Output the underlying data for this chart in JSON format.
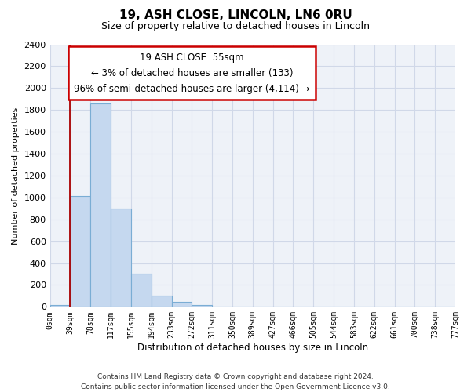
{
  "title": "19, ASH CLOSE, LINCOLN, LN6 0RU",
  "subtitle": "Size of property relative to detached houses in Lincoln",
  "xlabel": "Distribution of detached houses by size in Lincoln",
  "ylabel": "Number of detached properties",
  "bin_labels": [
    "0sqm",
    "39sqm",
    "78sqm",
    "117sqm",
    "155sqm",
    "194sqm",
    "233sqm",
    "272sqm",
    "311sqm",
    "350sqm",
    "389sqm",
    "427sqm",
    "466sqm",
    "505sqm",
    "544sqm",
    "583sqm",
    "622sqm",
    "661sqm",
    "700sqm",
    "738sqm",
    "777sqm"
  ],
  "bar_values": [
    20,
    1010,
    1860,
    900,
    300,
    100,
    45,
    20,
    0,
    0,
    0,
    0,
    0,
    0,
    0,
    0,
    0,
    0,
    0,
    0
  ],
  "bar_color": "#c5d8ef",
  "bar_edge_color": "#7aadd4",
  "property_line_x": 1,
  "property_line_color": "#aa0000",
  "ylim": [
    0,
    2400
  ],
  "yticks": [
    0,
    200,
    400,
    600,
    800,
    1000,
    1200,
    1400,
    1600,
    1800,
    2000,
    2200,
    2400
  ],
  "annotation_title": "19 ASH CLOSE: 55sqm",
  "annotation_line1": "← 3% of detached houses are smaller (133)",
  "annotation_line2": "96% of semi-detached houses are larger (4,114) →",
  "annotation_box_color": "#ffffff",
  "annotation_box_edge_color": "#cc0000",
  "footer_line1": "Contains HM Land Registry data © Crown copyright and database right 2024.",
  "footer_line2": "Contains public sector information licensed under the Open Government Licence v3.0.",
  "bg_color": "#ffffff",
  "plot_bg_color": "#eef2f8"
}
